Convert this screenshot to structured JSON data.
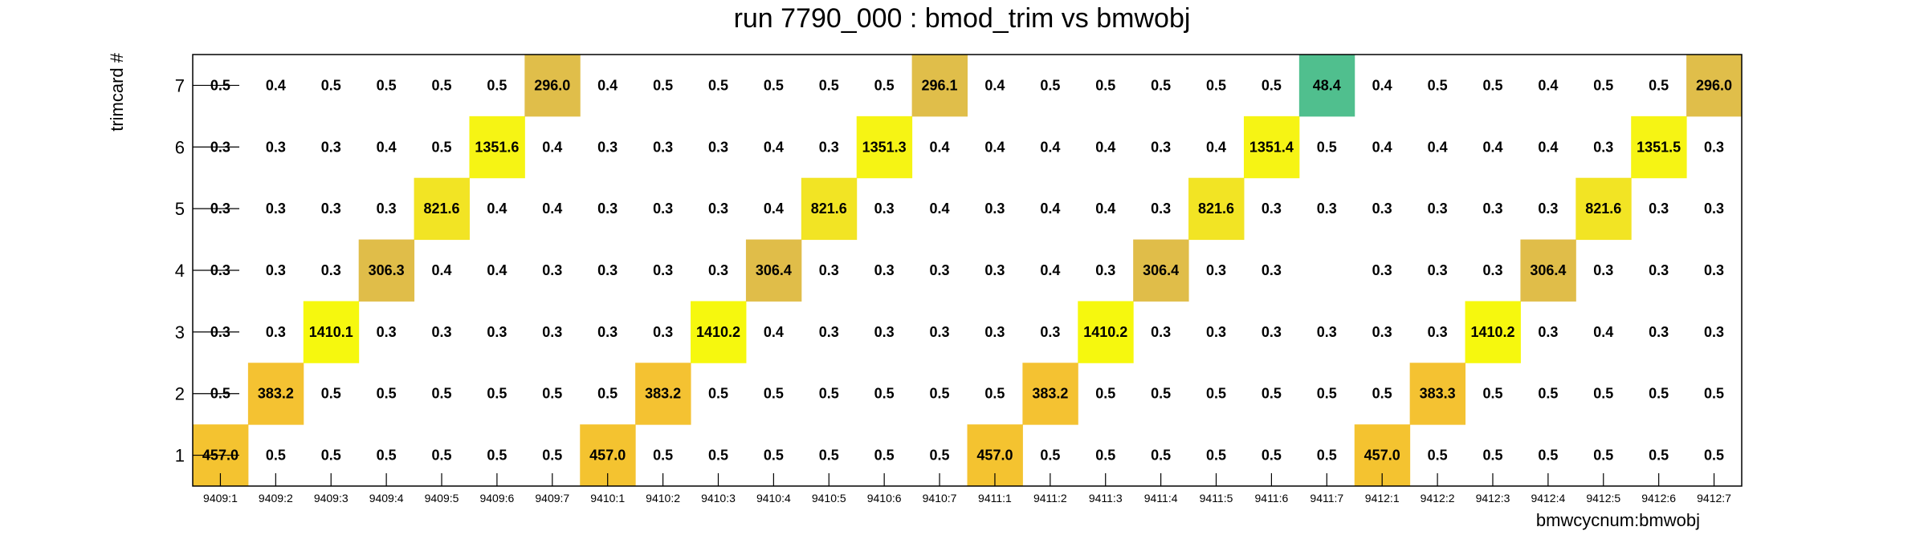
{
  "chart_data": {
    "type": "heatmap",
    "title": "run 7790_000 : bmod_trim vs bmwobj",
    "xlabel": "bmwcycnum:bmwobj",
    "ylabel": "trimcard #",
    "x_categories": [
      "9409:1",
      "9409:2",
      "9409:3",
      "9409:4",
      "9409:5",
      "9409:6",
      "9409:7",
      "9410:1",
      "9410:2",
      "9410:3",
      "9410:4",
      "9410:5",
      "9410:6",
      "9410:7",
      "9411:1",
      "9411:2",
      "9411:3",
      "9411:4",
      "9411:5",
      "9411:6",
      "9411:7",
      "9412:1",
      "9412:2",
      "9412:3",
      "9412:4",
      "9412:5",
      "9412:6",
      "9412:7"
    ],
    "y_categories": [
      "1",
      "2",
      "3",
      "4",
      "5",
      "6",
      "7"
    ],
    "values": [
      [
        "457.0",
        "0.5",
        "0.5",
        "0.5",
        "0.5",
        "0.5",
        "0.5",
        "457.0",
        "0.5",
        "0.5",
        "0.5",
        "0.5",
        "0.5",
        "0.5",
        "457.0",
        "0.5",
        "0.5",
        "0.5",
        "0.5",
        "0.5",
        "0.5",
        "457.0",
        "0.5",
        "0.5",
        "0.5",
        "0.5",
        "0.5",
        "0.5"
      ],
      [
        "0.5",
        "383.2",
        "0.5",
        "0.5",
        "0.5",
        "0.5",
        "0.5",
        "0.5",
        "383.2",
        "0.5",
        "0.5",
        "0.5",
        "0.5",
        "0.5",
        "0.5",
        "383.2",
        "0.5",
        "0.5",
        "0.5",
        "0.5",
        "0.5",
        "0.5",
        "383.3",
        "0.5",
        "0.5",
        "0.5",
        "0.5",
        "0.5"
      ],
      [
        "0.3",
        "0.3",
        "1410.1",
        "0.3",
        "0.3",
        "0.3",
        "0.3",
        "0.3",
        "0.3",
        "1410.2",
        "0.4",
        "0.3",
        "0.3",
        "0.3",
        "0.3",
        "0.3",
        "1410.2",
        "0.3",
        "0.3",
        "0.3",
        "0.3",
        "0.3",
        "0.3",
        "1410.2",
        "0.3",
        "0.4",
        "0.3",
        "0.3"
      ],
      [
        "0.3",
        "0.3",
        "0.3",
        "306.3",
        "0.4",
        "0.4",
        "0.3",
        "0.3",
        "0.3",
        "0.3",
        "306.4",
        "0.3",
        "0.3",
        "0.3",
        "0.3",
        "0.4",
        "0.3",
        "306.4",
        "0.3",
        "0.3",
        null,
        "0.3",
        "0.3",
        "0.3",
        "306.4",
        "0.3",
        "0.3",
        "0.3"
      ],
      [
        "0.3",
        "0.3",
        "0.3",
        "0.3",
        "821.6",
        "0.4",
        "0.4",
        "0.3",
        "0.3",
        "0.3",
        "0.4",
        "821.6",
        "0.3",
        "0.4",
        "0.3",
        "0.4",
        "0.4",
        "0.3",
        "821.6",
        "0.3",
        "0.3",
        "0.3",
        "0.3",
        "0.3",
        "0.3",
        "821.6",
        "0.3",
        "0.3"
      ],
      [
        "0.3",
        "0.3",
        "0.3",
        "0.4",
        "0.5",
        "1351.6",
        "0.4",
        "0.3",
        "0.3",
        "0.3",
        "0.4",
        "0.3",
        "1351.3",
        "0.4",
        "0.4",
        "0.4",
        "0.4",
        "0.3",
        "0.4",
        "1351.4",
        "0.5",
        "0.4",
        "0.4",
        "0.4",
        "0.4",
        "0.3",
        "1351.5",
        "0.3"
      ],
      [
        "0.5",
        "0.4",
        "0.5",
        "0.5",
        "0.5",
        "0.5",
        "296.0",
        "0.4",
        "0.5",
        "0.5",
        "0.5",
        "0.5",
        "0.5",
        "296.1",
        "0.4",
        "0.5",
        "0.5",
        "0.5",
        "0.5",
        "0.5",
        "48.4",
        "0.4",
        "0.5",
        "0.5",
        "0.4",
        "0.5",
        "0.5",
        "296.0"
      ]
    ],
    "colors": {
      "1410": "#f6f80e",
      "1351": "#f6f414",
      "821": "#f2e424",
      "457": "#f4c330",
      "383": "#f4c232",
      "306": "#e0bd49",
      "296": "#e0be4a",
      "48": "#50bf8e"
    },
    "grid": false,
    "legend": "none"
  }
}
